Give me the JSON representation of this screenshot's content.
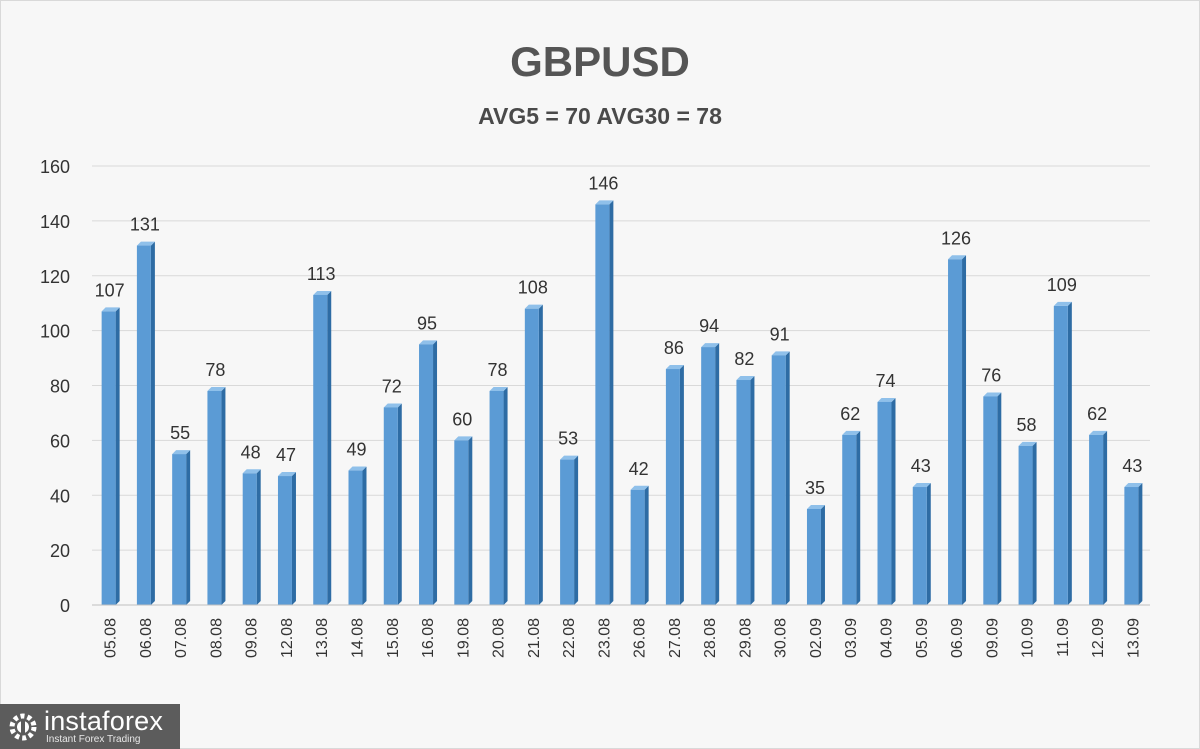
{
  "chart_data": {
    "type": "bar",
    "title": "GBPUSD",
    "subtitle": "AVG5 = 70 AVG30 = 78",
    "xlabel": "",
    "ylabel": "",
    "ylim": [
      0,
      160
    ],
    "yticks": [
      0,
      20,
      40,
      60,
      80,
      100,
      120,
      140,
      160
    ],
    "grid": true,
    "categories": [
      "05.08",
      "06.08",
      "07.08",
      "08.08",
      "09.08",
      "12.08",
      "13.08",
      "14.08",
      "15.08",
      "16.08",
      "19.08",
      "20.08",
      "21.08",
      "22.08",
      "23.08",
      "26.08",
      "27.08",
      "28.08",
      "29.08",
      "30.08",
      "02.09",
      "03.09",
      "04.09",
      "05.09",
      "06.09",
      "09.09",
      "10.09",
      "11.09",
      "12.09",
      "13.09"
    ],
    "values": [
      107,
      131,
      55,
      78,
      48,
      47,
      113,
      49,
      72,
      95,
      60,
      78,
      108,
      53,
      146,
      42,
      86,
      94,
      82,
      91,
      35,
      62,
      74,
      43,
      126,
      76,
      58,
      109,
      62,
      43
    ],
    "colors": {
      "bar": "#5b9bd5",
      "bar_side": "#2e6ca4",
      "bar_top": "#8fc0ea",
      "grid": "#d9d9d9",
      "text": "#333333"
    }
  },
  "logo": {
    "name": "instaforex",
    "tagline": "Instant Forex Trading"
  }
}
